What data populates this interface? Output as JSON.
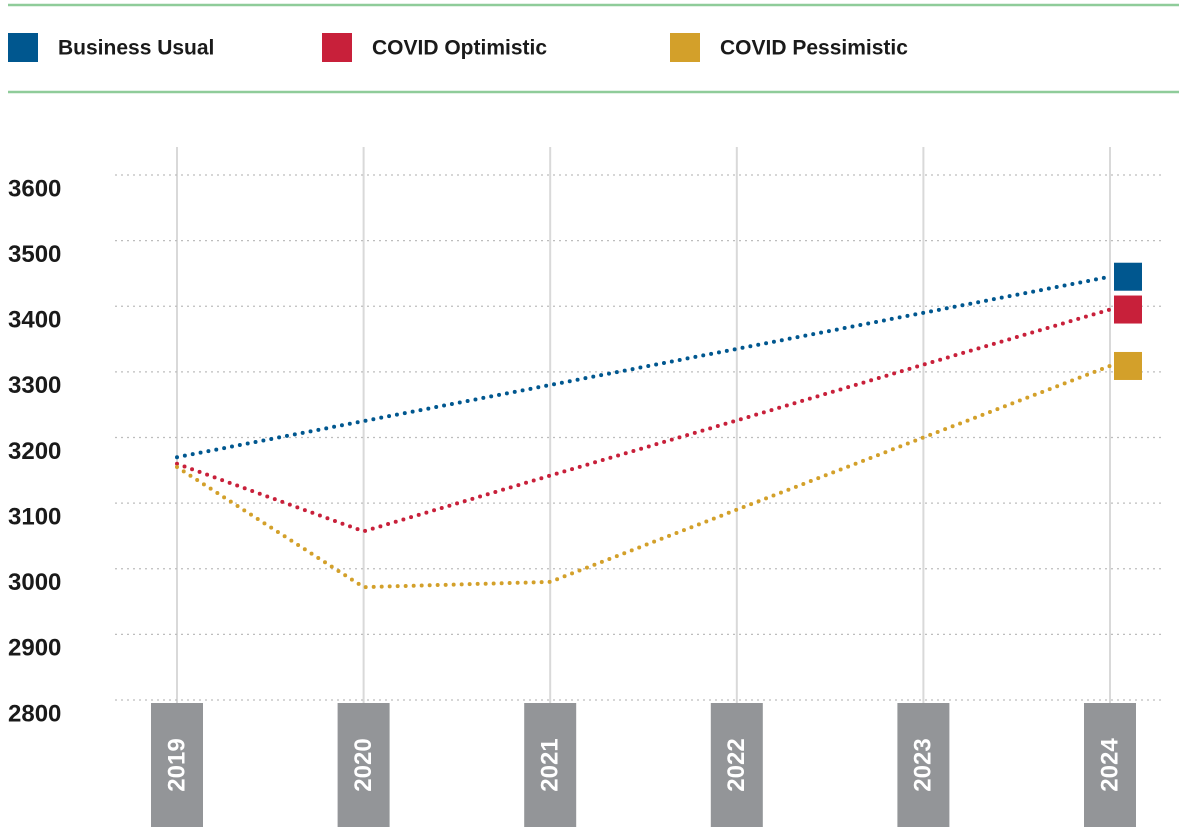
{
  "chart_data": {
    "type": "line",
    "categories": [
      "2019",
      "2020",
      "2021",
      "2022",
      "2023",
      "2024"
    ],
    "series": [
      {
        "name": "Business Usual",
        "color": "#00578f",
        "values": [
          3170,
          3225,
          3280,
          3335,
          3390,
          3445
        ]
      },
      {
        "name": "COVID Optimistic",
        "color": "#c8203a",
        "values": [
          3160,
          3057,
          3142,
          3226,
          3311,
          3395
        ]
      },
      {
        "name": "COVID Pessimistic",
        "color": "#d3a02a",
        "values": [
          3155,
          2972,
          2980,
          3090,
          3200,
          3309
        ]
      }
    ],
    "ylim": [
      2800,
      3600
    ],
    "yticks": [
      2800,
      2900,
      3000,
      3100,
      3200,
      3300,
      3400,
      3500,
      3600
    ],
    "grid": true
  }
}
